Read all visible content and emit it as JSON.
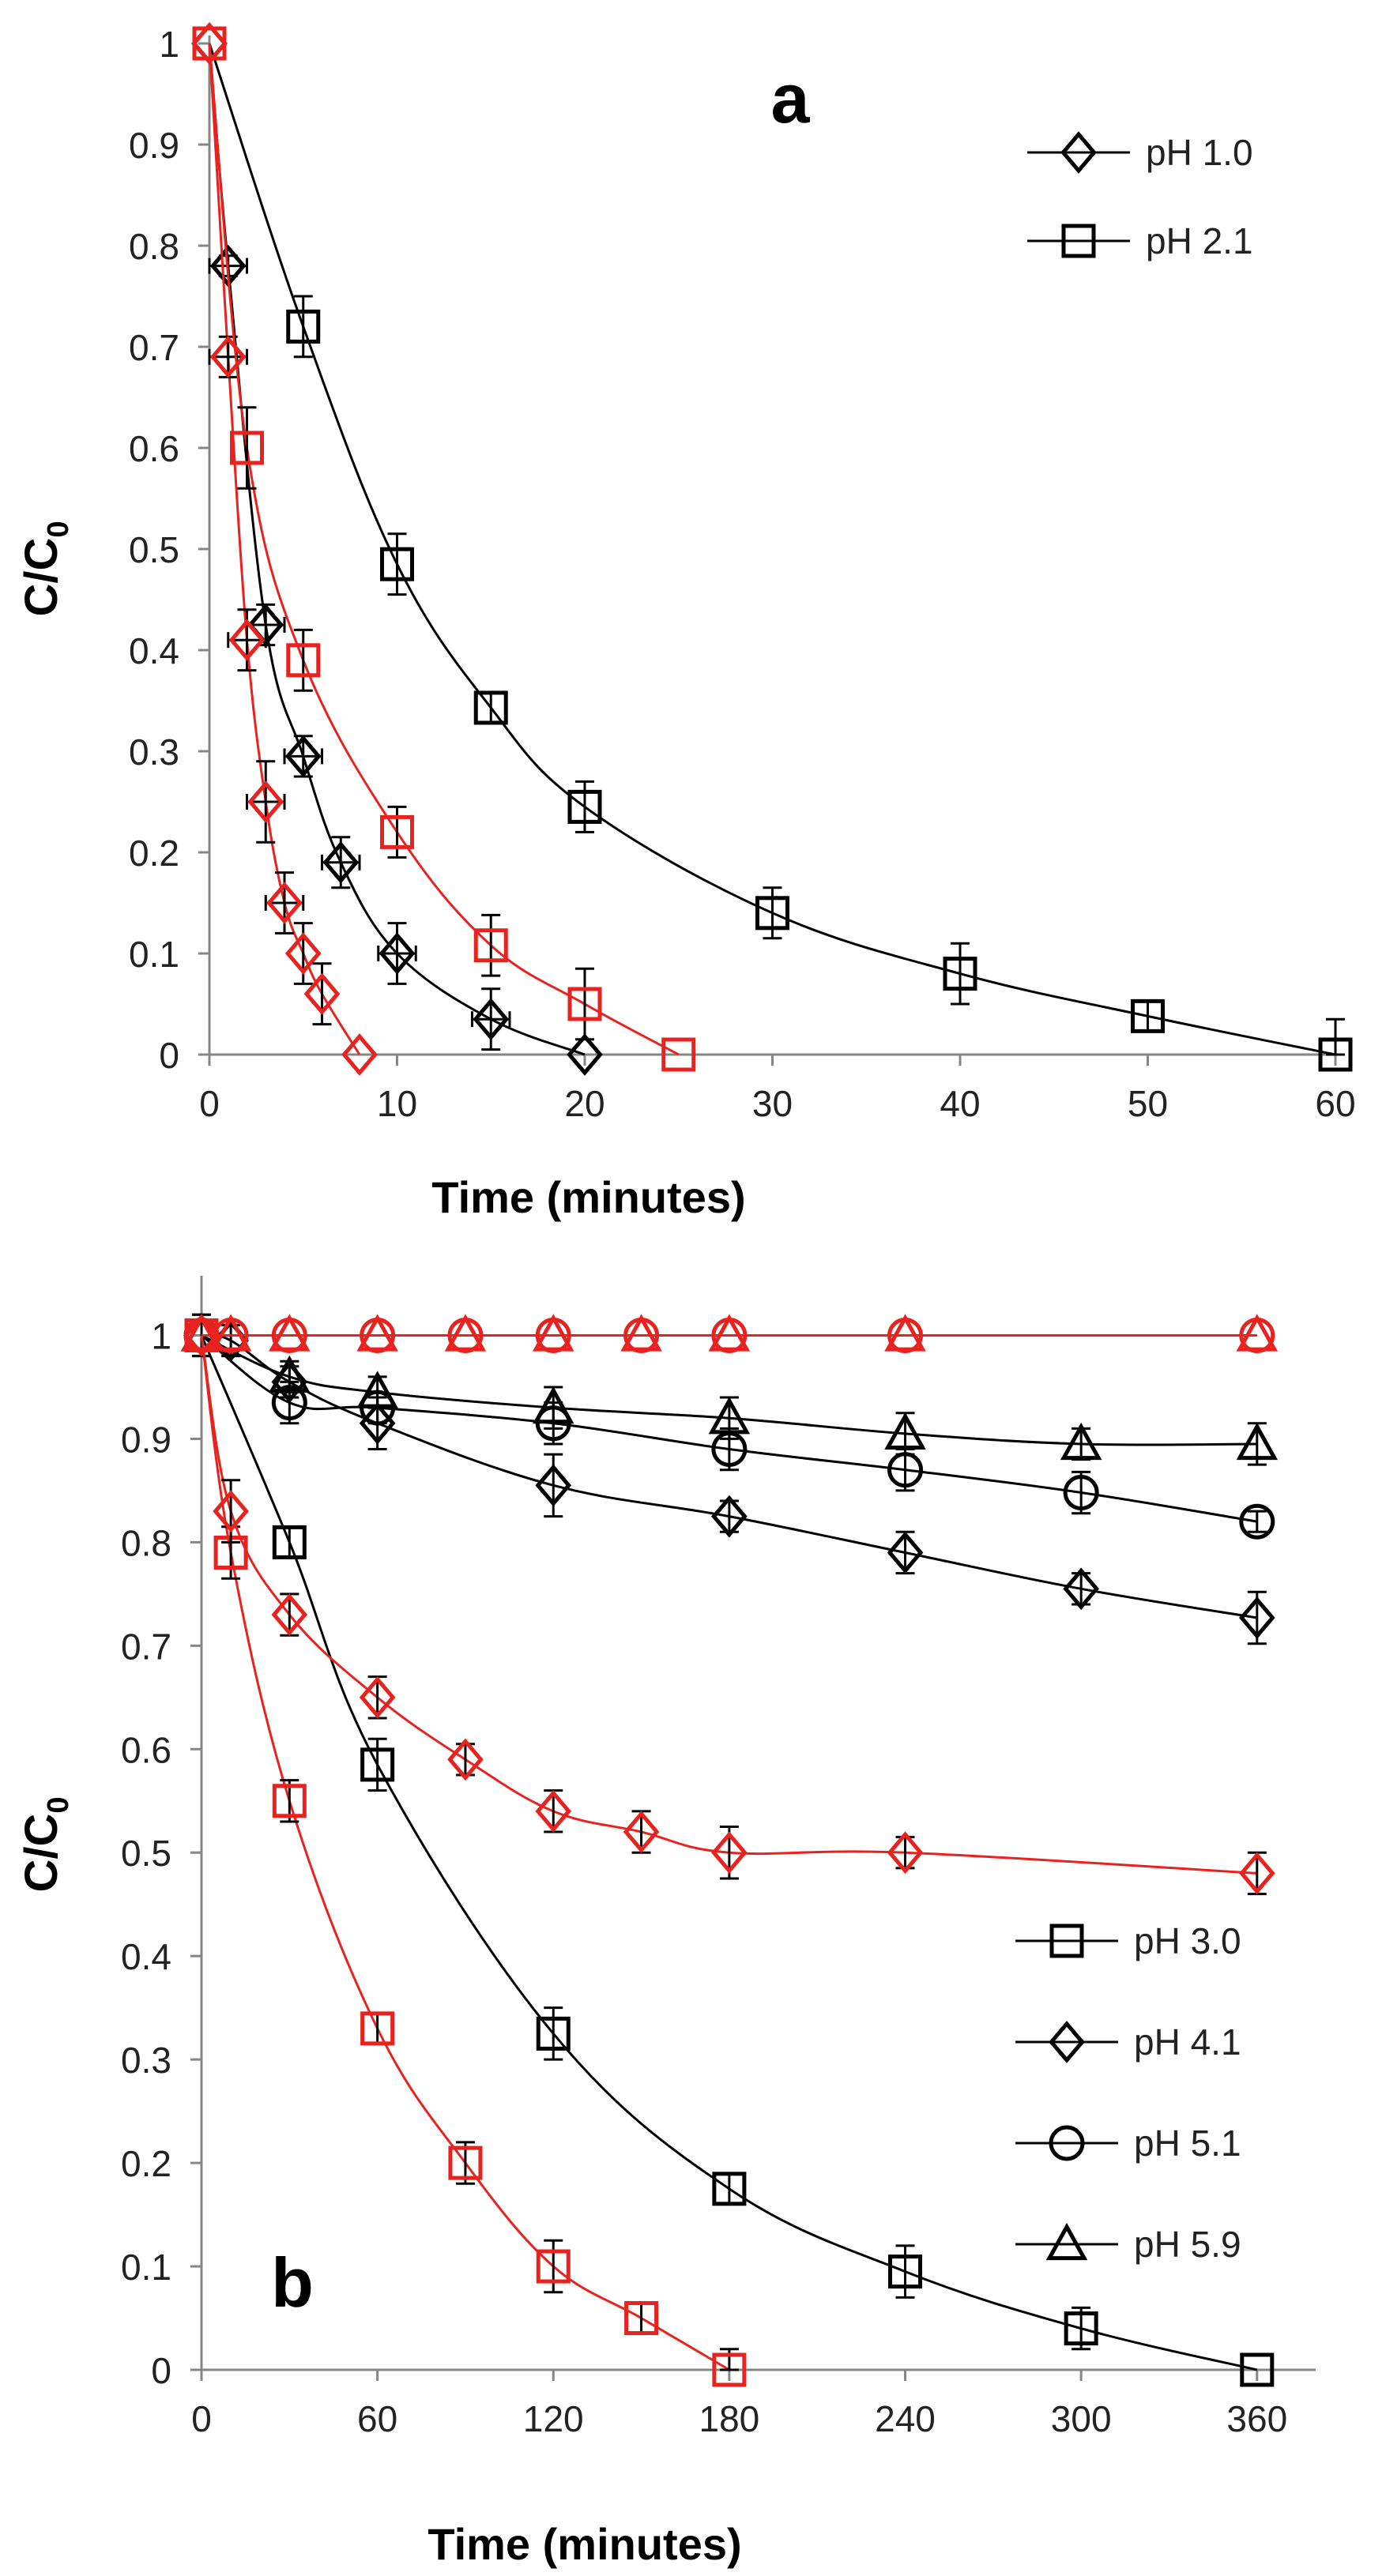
{
  "chart_data": [
    {
      "type": "scatter",
      "panel_label": "a",
      "xlabel": "Time (minutes)",
      "ylabel": "C/C",
      "ylabel_sub": "0",
      "xlim": [
        0,
        60
      ],
      "ylim": [
        0,
        1
      ],
      "x_ticks": [
        0,
        10,
        20,
        30,
        40,
        50,
        60
      ],
      "x_tick_labels": [
        "0",
        "10",
        "20",
        "30",
        "40",
        "50",
        "60"
      ],
      "y_ticks": [
        0,
        0.1,
        0.2,
        0.3,
        0.4,
        0.5,
        0.6,
        0.7,
        0.8,
        0.9,
        1
      ],
      "y_tick_labels": [
        "0",
        "0.1",
        "0.2",
        "0.3",
        "0.4",
        "0.5",
        "0.6",
        "0.7",
        "0.8",
        "0.9",
        "1"
      ],
      "grid": false,
      "legend_position": "top-right",
      "legend": [
        {
          "label": "pH 1.0",
          "marker": "diamond"
        },
        {
          "label": "pH 2.1",
          "marker": "square"
        }
      ],
      "series": [
        {
          "name": "pH 1.0 (black)",
          "marker": "diamond",
          "color": "#000000",
          "x": [
            0,
            1,
            3,
            5,
            7,
            10,
            15,
            20
          ],
          "y": [
            1,
            0.78,
            0.425,
            0.295,
            0.19,
            0.1,
            0.035,
            0
          ],
          "yerr": [
            0,
            0.01,
            0.02,
            0.02,
            0.025,
            0.03,
            0.03,
            0
          ],
          "xerr": [
            0,
            1,
            1,
            1,
            1,
            1,
            1,
            0
          ]
        },
        {
          "name": "pH 2.1 (black)",
          "marker": "square",
          "color": "#000000",
          "x": [
            0,
            5,
            10,
            15,
            20,
            30,
            40,
            50,
            60
          ],
          "y": [
            1,
            0.72,
            0.485,
            0.343,
            0.245,
            0.14,
            0.08,
            0.038,
            0
          ],
          "yerr": [
            0,
            0.03,
            0.03,
            0.015,
            0.025,
            0.025,
            0.03,
            0.015,
            0.035
          ]
        },
        {
          "name": "pH 1.0 (red)",
          "marker": "diamond",
          "color": "#e8231f",
          "x": [
            0,
            1,
            2,
            3,
            4,
            5,
            6,
            8
          ],
          "y": [
            1,
            0.69,
            0.41,
            0.25,
            0.15,
            0.1,
            0.06,
            0
          ],
          "yerr": [
            0,
            0.02,
            0.03,
            0.04,
            0.03,
            0.03,
            0.03,
            0
          ],
          "xerr": [
            0,
            1,
            1,
            1,
            1,
            0,
            0,
            0
          ]
        },
        {
          "name": "pH 2.1 (red)",
          "marker": "square",
          "color": "#e8231f",
          "x": [
            0,
            2,
            5,
            10,
            15,
            20,
            25
          ],
          "y": [
            1,
            0.6,
            0.39,
            0.22,
            0.108,
            0.05,
            0
          ],
          "yerr": [
            0,
            0.04,
            0.03,
            0.025,
            0.03,
            0.035,
            0
          ]
        }
      ]
    },
    {
      "type": "scatter",
      "panel_label": "b",
      "xlabel": "Time (minutes)",
      "ylabel": "C/C",
      "ylabel_sub": "0",
      "xlim": [
        0,
        380
      ],
      "ylim": [
        0,
        1.05
      ],
      "x_ticks": [
        0,
        60,
        120,
        180,
        240,
        300,
        360
      ],
      "x_tick_labels": [
        "0",
        "60",
        "120",
        "180",
        "240",
        "300",
        "360"
      ],
      "y_ticks": [
        0,
        0.1,
        0.2,
        0.3,
        0.4,
        0.5,
        0.6,
        0.7,
        0.8,
        0.9,
        1
      ],
      "y_tick_labels": [
        "0",
        "0.1",
        "0.2",
        "0.3",
        "0.4",
        "0.5",
        "0.6",
        "0.7",
        "0.8",
        "0.9",
        "1"
      ],
      "grid": false,
      "legend_position": "bottom-right",
      "legend": [
        {
          "label": "pH 3.0",
          "marker": "square"
        },
        {
          "label": "pH 4.1",
          "marker": "diamond"
        },
        {
          "label": "pH 5.1",
          "marker": "circle"
        },
        {
          "label": "pH 5.9",
          "marker": "triangle"
        }
      ],
      "series": [
        {
          "name": "pH 3.0 (black)",
          "marker": "square",
          "color": "#000000",
          "x": [
            0,
            30,
            60,
            120,
            180,
            240,
            300,
            360
          ],
          "y": [
            1,
            0.8,
            0.585,
            0.325,
            0.175,
            0.095,
            0.04,
            0
          ],
          "yerr": [
            0.02,
            0.015,
            0.025,
            0.025,
            0.015,
            0.025,
            0.02,
            0
          ]
        },
        {
          "name": "pH 4.1 (black)",
          "marker": "diamond",
          "color": "#000000",
          "x": [
            0,
            10,
            30,
            60,
            120,
            180,
            240,
            300,
            360
          ],
          "y": [
            1,
            0.995,
            0.955,
            0.915,
            0.855,
            0.825,
            0.79,
            0.755,
            0.727
          ],
          "yerr": [
            0.02,
            0.015,
            0.015,
            0.025,
            0.03,
            0.015,
            0.02,
            0.015,
            0.025
          ]
        },
        {
          "name": "pH 5.1 (black)",
          "marker": "circle",
          "color": "#000000",
          "x": [
            0,
            30,
            60,
            120,
            180,
            240,
            300,
            360
          ],
          "y": [
            1,
            0.935,
            0.93,
            0.915,
            0.89,
            0.87,
            0.848,
            0.82
          ],
          "yerr": [
            0.015,
            0.02,
            0.015,
            0.02,
            0.02,
            0.02,
            0.02,
            0.01
          ]
        },
        {
          "name": "pH 5.9 (black)",
          "marker": "triangle",
          "color": "#000000",
          "x": [
            0,
            30,
            60,
            120,
            180,
            240,
            300,
            360
          ],
          "y": [
            1,
            0.96,
            0.945,
            0.93,
            0.92,
            0.905,
            0.895,
            0.895
          ],
          "yerr": [
            0.015,
            0.015,
            0.015,
            0.02,
            0.02,
            0.02,
            0.015,
            0.02
          ]
        },
        {
          "name": "pH 3.0 (red)",
          "marker": "square",
          "color": "#e8231f",
          "x": [
            0,
            10,
            30,
            60,
            90,
            120,
            150,
            180
          ],
          "y": [
            1,
            0.79,
            0.55,
            0.33,
            0.2,
            0.1,
            0.05,
            0
          ],
          "yerr": [
            0,
            0.025,
            0.02,
            0.015,
            0.02,
            0.025,
            0.015,
            0.02
          ]
        },
        {
          "name": "pH 4.1 (red)",
          "marker": "diamond",
          "color": "#e8231f",
          "x": [
            0,
            10,
            30,
            60,
            90,
            120,
            150,
            180,
            240,
            360
          ],
          "y": [
            1,
            0.83,
            0.73,
            0.65,
            0.59,
            0.54,
            0.52,
            0.5,
            0.5,
            0.48
          ],
          "yerr": [
            0,
            0.03,
            0.02,
            0.02,
            0.015,
            0.02,
            0.02,
            0.025,
            0.015,
            0.02
          ]
        },
        {
          "name": "pH 5.1 (red)",
          "marker": "circle",
          "color": "#e8231f",
          "x": [
            0,
            10,
            30,
            60,
            90,
            120,
            150,
            180,
            240,
            360
          ],
          "y": [
            1,
            1,
            1,
            1,
            1,
            1,
            1,
            1,
            1,
            1
          ],
          "yerr": [
            0,
            0,
            0,
            0,
            0,
            0,
            0,
            0,
            0,
            0
          ]
        },
        {
          "name": "pH 5.9 (red)",
          "marker": "triangle",
          "color": "#e8231f",
          "x": [
            0,
            10,
            30,
            60,
            90,
            120,
            150,
            180,
            240,
            360
          ],
          "y": [
            1,
            1,
            1,
            1,
            1,
            1,
            1,
            1,
            1,
            1
          ],
          "yerr": [
            0,
            0,
            0,
            0,
            0,
            0,
            0,
            0,
            0,
            0
          ]
        }
      ]
    }
  ]
}
